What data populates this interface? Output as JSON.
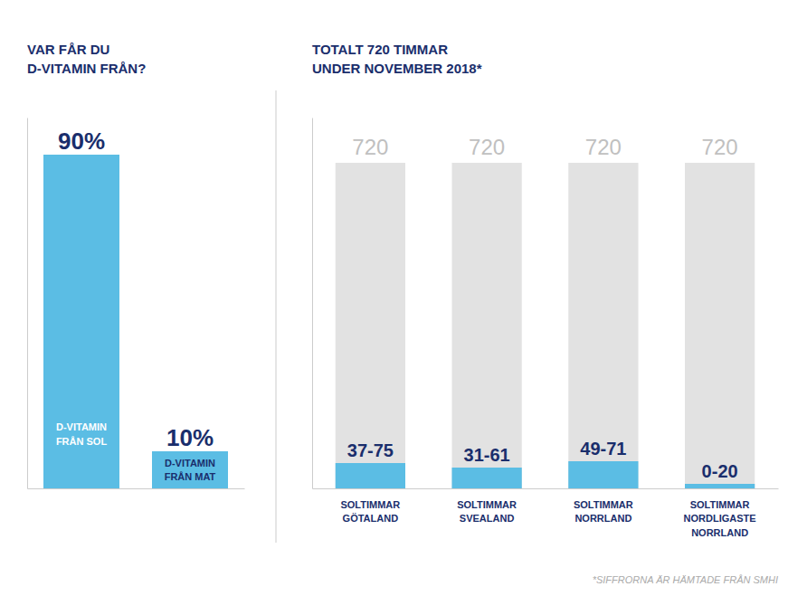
{
  "chart_data": [
    {
      "type": "bar",
      "title": "VAR FÅR DU\nD-VITAMIN FRÅN?",
      "categories": [
        "D-VITAMIN\nFRÅN SOL",
        "D-VITAMIN\nFRÅN MAT"
      ],
      "values": [
        90,
        10
      ],
      "value_labels": [
        "90%",
        "10%"
      ],
      "color": "#5bbde4",
      "ylim": [
        0,
        100
      ],
      "data_labels": true,
      "tick_labels": false,
      "grid": false
    },
    {
      "type": "bar",
      "title": "TOTALT 720 TIMMAR\nUNDER NOVEMBER 2018*",
      "categories": [
        "SOLTIMMAR\nGÖTALAND",
        "SOLTIMMAR\nSVEALAND",
        "SOLTIMMAR\nNORRLAND",
        "SOLTIMMAR\nNORDLIGASTE\nNORRLAND"
      ],
      "series": [
        {
          "color": "#e2e2e2",
          "values": [
            720,
            720,
            720,
            720
          ]
        },
        {
          "color": "#5bbde4",
          "values": [
            56,
            46,
            60,
            10
          ],
          "value_labels": [
            "37-75",
            "31-61",
            "49-71",
            "0-20"
          ]
        }
      ],
      "stacked": false,
      "ylim": [
        0,
        820
      ],
      "data_labels": true,
      "tick_labels": false,
      "grid": false,
      "annotations": [
        "*SIFFRORNA ÄR HÄMTADE FRÅN SMHI"
      ]
    }
  ]
}
